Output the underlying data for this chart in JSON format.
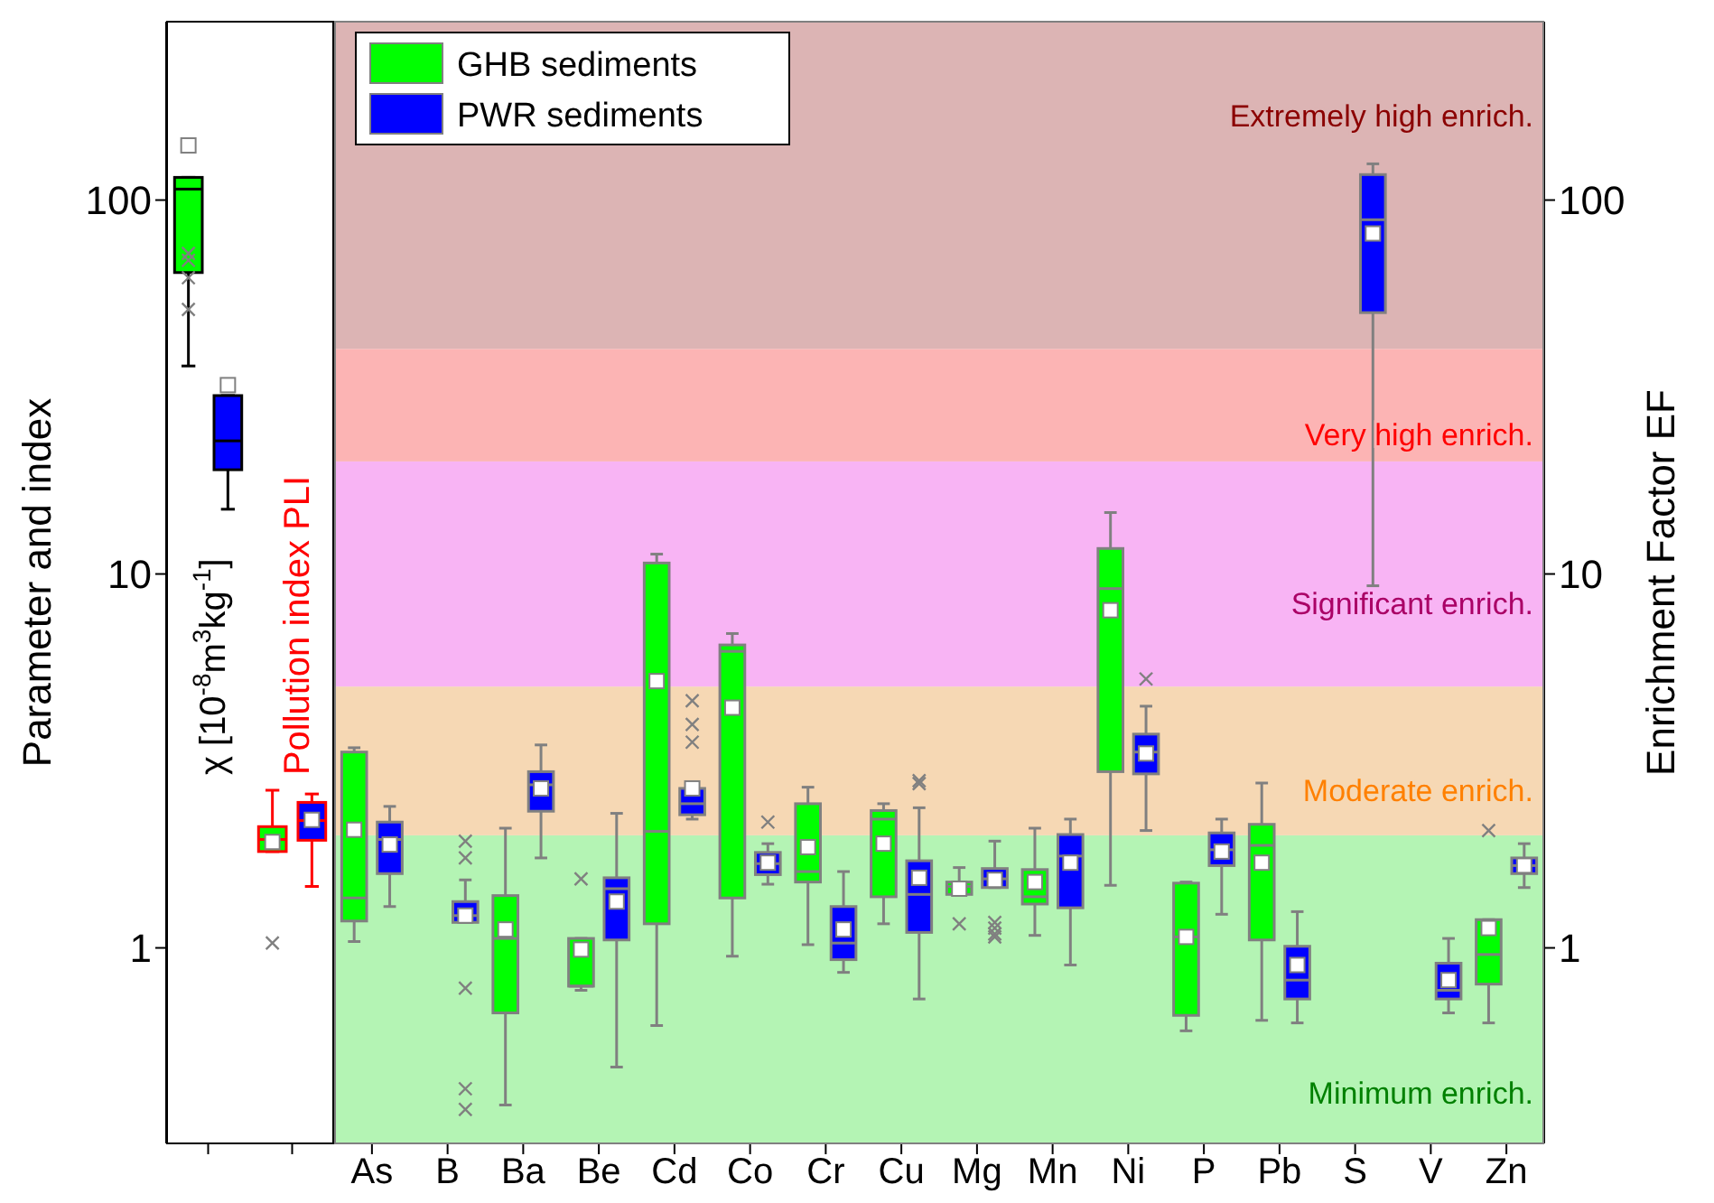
{
  "chart_data": [
    {
      "type": "box",
      "ylabel": "Parameter and index",
      "categories": [
        "χ [10$^{-8}$m$^{3}$kg$^{-1}$]",
        "Pollution index PLI"
      ],
      "ylim": [
        0.3,
        300
      ],
      "yticks": [
        1,
        10,
        100
      ],
      "log": true,
      "series": [
        {
          "color": "#00ff00",
          "boxes": [
            {
              "low": 36,
              "q1": 64,
              "median": 107,
              "q3": 115,
              "high": 115,
              "mean": 140,
              "outliers": [
                72,
                69,
                62,
                51
              ]
            },
            {
              "low": 1.81,
              "q1": 1.81,
              "median": 1.95,
              "q3": 2.11,
              "high": 2.64,
              "mean": 1.92,
              "outliers": [
                1.03
              ]
            }
          ]
        },
        {
          "color": "#0000ff",
          "boxes": [
            {
              "low": 14.9,
              "q1": 19,
              "median": 22.7,
              "q3": 30,
              "high": 30,
              "mean": 32
            },
            {
              "low": 1.46,
              "q1": 1.94,
              "median": 2.19,
              "q3": 2.45,
              "high": 2.58,
              "mean": 2.2
            }
          ]
        }
      ]
    },
    {
      "type": "box",
      "y2label": "Enrichment Factor EF",
      "categories": [
        "As",
        "B",
        "Ba",
        "Be",
        "Cd",
        "Co",
        "Cr",
        "Cu",
        "Mg",
        "Mn",
        "Ni",
        "P",
        "Pb",
        "S",
        "V",
        "Zn"
      ],
      "y2lim": [
        0.3,
        300
      ],
      "y2ticks": [
        1,
        10,
        100
      ],
      "log": "y2",
      "legend": "top left",
      "bands": [
        {
          "axis": "y2",
          "from": 0.3,
          "to": 2,
          "label": "Minimum enrich.",
          "color": "#b4f4b4"
        },
        {
          "axis": "y2",
          "from": 2,
          "to": 5,
          "label": "Moderate enrich.",
          "color": "#f6d8b4"
        },
        {
          "axis": "y2",
          "from": 5,
          "to": 20,
          "label": "Significant enrich.",
          "color": "#f8b4f4"
        },
        {
          "axis": "y2",
          "from": 20,
          "to": 40,
          "label": "Very high enrich.",
          "color": "#fcb4b4"
        },
        {
          "axis": "y2",
          "from": 40,
          "to": 300,
          "label": "Extremely high enrich.",
          "color": "#dcb4b4"
        }
      ],
      "series": [
        {
          "name": "GHB sediments",
          "color": "#00ff00",
          "axis": "y2",
          "boxes": [
            {
              "low": 1.04,
              "q1": 1.18,
              "median": 1.36,
              "q3": 3.34,
              "high": 3.43,
              "mean": 2.07
            },
            null,
            {
              "low": 0.38,
              "q1": 0.67,
              "median": 1.06,
              "q3": 1.38,
              "high": 2.09,
              "mean": 1.12
            },
            {
              "low": 0.77,
              "q1": 0.79,
              "median": 0.79,
              "q3": 1.06,
              "high": 1.06,
              "mean": 0.99,
              "outliers": [
                1.53
              ]
            },
            {
              "low": 0.62,
              "q1": 1.16,
              "median": 2.05,
              "q3": 10.7,
              "high": 11.3,
              "mean": 5.17
            },
            {
              "low": 0.95,
              "q1": 1.36,
              "median": 6.21,
              "q3": 6.46,
              "high": 6.93,
              "mean": 4.39
            },
            {
              "low": 1.02,
              "q1": 1.5,
              "median": 1.6,
              "q3": 2.43,
              "high": 2.69,
              "mean": 1.86
            },
            {
              "low": 1.16,
              "q1": 1.37,
              "median": 2.21,
              "q3": 2.33,
              "high": 2.43,
              "mean": 1.9
            },
            {
              "low": 1.39,
              "q1": 1.39,
              "median": 1.46,
              "q3": 1.5,
              "high": 1.64,
              "mean": 1.44,
              "outliers": [
                1.16
              ]
            },
            {
              "low": 1.08,
              "q1": 1.31,
              "median": 1.37,
              "q3": 1.62,
              "high": 2.09,
              "mean": 1.5
            },
            {
              "low": 1.47,
              "q1": 2.96,
              "median": 9.14,
              "q3": 11.7,
              "high": 14.6,
              "mean": 8.0
            },
            {
              "low": 0.6,
              "q1": 0.66,
              "median": 1.07,
              "q3": 1.49,
              "high": 1.5,
              "mean": 1.07
            },
            {
              "low": 0.64,
              "q1": 1.05,
              "median": 1.88,
              "q3": 2.14,
              "high": 2.76,
              "mean": 1.69
            },
            null,
            null,
            {
              "low": 0.63,
              "q1": 0.8,
              "median": 0.96,
              "q3": 1.19,
              "high": 1.19,
              "mean": 1.13,
              "outliers": [
                2.06
              ]
            }
          ]
        },
        {
          "name": "PWR sediments",
          "color": "#0000ff",
          "axis": "y2",
          "boxes": [
            {
              "low": 1.29,
              "q1": 1.58,
              "median": 1.95,
              "q3": 2.17,
              "high": 2.39,
              "mean": 1.89
            },
            {
              "low": 1.17,
              "q1": 1.17,
              "median": 1.22,
              "q3": 1.33,
              "high": 1.52,
              "mean": 1.22,
              "outliers": [
                1.93,
                1.74,
                0.78,
                0.42,
                0.37
              ]
            },
            {
              "low": 1.74,
              "q1": 2.32,
              "median": 2.73,
              "q3": 2.96,
              "high": 3.49,
              "mean": 2.67
            },
            {
              "low": 0.48,
              "q1": 1.05,
              "median": 1.44,
              "q3": 1.54,
              "high": 2.29,
              "mean": 1.33
            },
            {
              "low": 2.21,
              "q1": 2.27,
              "median": 2.43,
              "q3": 2.67,
              "high": 2.67,
              "mean": 2.67,
              "outliers": [
                4.58,
                3.96,
                3.55
              ]
            },
            {
              "low": 1.48,
              "q1": 1.57,
              "median": 1.68,
              "q3": 1.8,
              "high": 1.9,
              "mean": 1.69,
              "outliers": [
                2.17
              ]
            },
            {
              "low": 0.86,
              "q1": 0.93,
              "median": 1.03,
              "q3": 1.29,
              "high": 1.6,
              "mean": 1.12
            },
            {
              "low": 0.73,
              "q1": 1.1,
              "median": 1.39,
              "q3": 1.71,
              "high": 2.37,
              "mean": 1.54,
              "outliers": [
                2.8,
                2.75
              ]
            },
            {
              "low": 1.45,
              "q1": 1.45,
              "median": 1.53,
              "q3": 1.63,
              "high": 1.93,
              "mean": 1.52,
              "outliers": [
                1.17,
                1.13,
                1.09,
                1.07
              ]
            },
            {
              "low": 0.9,
              "q1": 1.28,
              "median": 1.76,
              "q3": 2.01,
              "high": 2.21,
              "mean": 1.69
            },
            {
              "low": 2.06,
              "q1": 2.92,
              "median": 3.34,
              "q3": 3.73,
              "high": 4.43,
              "mean": 3.31,
              "outliers": [
                5.24
              ]
            },
            {
              "low": 1.23,
              "q1": 1.66,
              "median": 1.83,
              "q3": 2.03,
              "high": 2.21,
              "mean": 1.81
            },
            {
              "low": 0.63,
              "q1": 0.73,
              "median": 0.82,
              "q3": 1.01,
              "high": 1.25,
              "mean": 0.9
            },
            {
              "low": 9.3,
              "q1": 50,
              "median": 88.6,
              "q3": 117,
              "high": 125,
              "mean": 81.4
            },
            {
              "low": 0.67,
              "q1": 0.73,
              "median": 0.77,
              "q3": 0.91,
              "high": 1.06,
              "mean": 0.82
            },
            {
              "low": 1.45,
              "q1": 1.58,
              "median": 1.66,
              "q3": 1.74,
              "high": 1.9,
              "mean": 1.66
            }
          ]
        }
      ]
    }
  ]
}
